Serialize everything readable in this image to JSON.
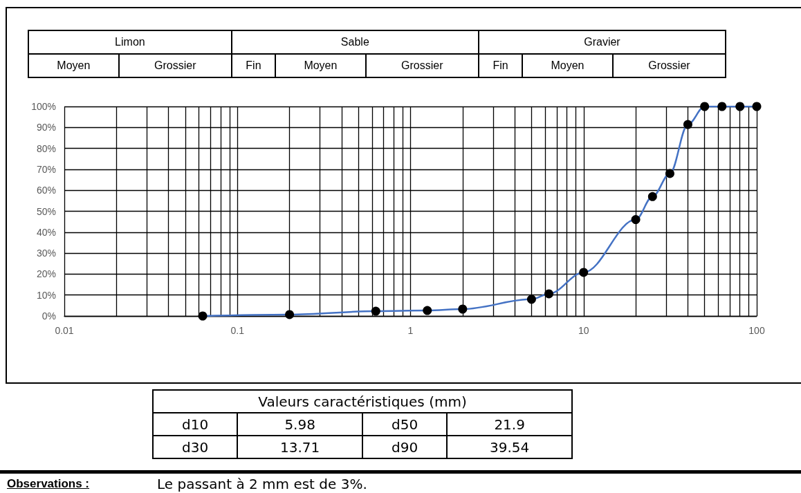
{
  "chart_data": [
    {
      "type": "other",
      "annotations": [
        "Limon",
        "Sable",
        "Gravier",
        "Moyen",
        "Grossier",
        "Fin",
        "Moyen",
        "Grossier",
        "Fin",
        "Moyen",
        "Grossier"
      ]
    },
    {
      "type": "line",
      "log": "x",
      "grid": true,
      "marker": "circle",
      "line_style": "solid",
      "x": [
        0.063,
        0.2,
        0.63,
        1.25,
        2,
        5,
        6.3,
        10,
        20,
        25,
        31.5,
        40,
        50,
        63,
        80,
        100
      ],
      "series": [
        {
          "color": "#4472c4",
          "colors": [
            "#000000",
            "#000000",
            "#000000",
            "#000000",
            "#000000",
            "#000000",
            "#000000",
            "#000000",
            "#000000",
            "#000000",
            "#000000",
            "#000000",
            "#000000",
            "#000000",
            "#000000",
            "#000000"
          ],
          "values": [
            0,
            0.7,
            2.3,
            2.6,
            3.3,
            8,
            10.6,
            20.8,
            46,
            57,
            68,
            91.4,
            100,
            100,
            100,
            100
          ]
        }
      ],
      "xlim": [
        0.01,
        100
      ],
      "xticks": [
        0.01,
        {
          "value": 0.02,
          "label": null
        },
        {
          "value": 0.03,
          "label": null
        },
        {
          "value": 0.04,
          "label": null
        },
        {
          "value": 0.05,
          "label": null
        },
        {
          "value": 0.06,
          "label": null
        },
        {
          "value": 0.07,
          "label": null
        },
        {
          "value": 0.08,
          "label": null
        },
        {
          "value": 0.09,
          "label": null
        },
        0.1,
        {
          "value": 0.2,
          "label": null
        },
        {
          "value": 0.3,
          "label": null
        },
        {
          "value": 0.4,
          "label": null
        },
        {
          "value": 0.5,
          "label": null
        },
        {
          "value": 0.6,
          "label": null
        },
        {
          "value": 0.7,
          "label": null
        },
        {
          "value": 0.8,
          "label": null
        },
        {
          "value": 0.9,
          "label": null
        },
        1,
        {
          "value": 2,
          "label": null
        },
        {
          "value": 3,
          "label": null
        },
        {
          "value": 4,
          "label": null
        },
        {
          "value": 5,
          "label": null
        },
        {
          "value": 6,
          "label": null
        },
        {
          "value": 7,
          "label": null
        },
        {
          "value": 8,
          "label": null
        },
        {
          "value": 9,
          "label": null
        },
        10,
        {
          "value": 20,
          "label": null
        },
        {
          "value": 30,
          "label": null
        },
        {
          "value": 40,
          "label": null
        },
        {
          "value": 50,
          "label": null
        },
        {
          "value": 60,
          "label": null
        },
        {
          "value": 70,
          "label": null
        },
        {
          "value": 80,
          "label": null
        },
        {
          "value": 90,
          "label": null
        },
        100
      ],
      "ylim": [
        0,
        100
      ],
      "yticks": [
        {
          "value": 0,
          "label": "0%"
        },
        {
          "value": 10,
          "label": "10%"
        },
        {
          "value": 20,
          "label": "20%"
        },
        {
          "value": 30,
          "label": "30%"
        },
        {
          "value": 40,
          "label": "40%"
        },
        {
          "value": 50,
          "label": "50%"
        },
        {
          "value": 60,
          "label": "60%"
        },
        {
          "value": 70,
          "label": "70%"
        },
        {
          "value": 80,
          "label": "80%"
        },
        {
          "value": 90,
          "label": "90%"
        },
        {
          "value": 100,
          "label": "100%"
        }
      ],
      "annotations": [
        "Observations :",
        "Le passant à 2 mm est de 3%."
      ]
    },
    {
      "type": "other",
      "title": "Valeurs caractéristiques (mm)",
      "annotations": [
        "d10",
        "5.98",
        "d50",
        "21.9",
        "d30",
        "13.71",
        "d90",
        "39.54"
      ]
    }
  ]
}
